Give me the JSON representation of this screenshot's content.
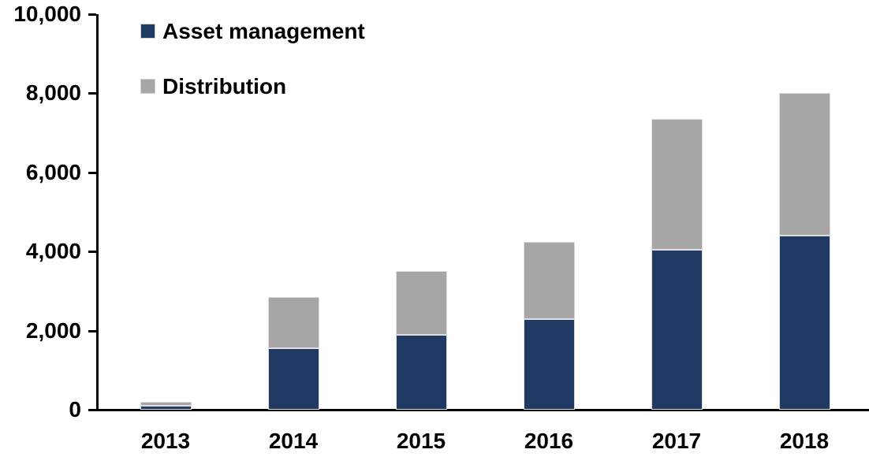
{
  "chart_data": {
    "type": "bar",
    "stacked": true,
    "title": "",
    "xlabel": "",
    "ylabel": "",
    "categories": [
      "2013",
      "2014",
      "2015",
      "2016",
      "2017",
      "2018"
    ],
    "series": [
      {
        "name": "Asset management",
        "color": "#213a64",
        "values": [
          100,
          1550,
          1900,
          2300,
          4050,
          4400
        ]
      },
      {
        "name": "Distribution",
        "color": "#a6a6a6",
        "values": [
          100,
          1300,
          1600,
          1950,
          3300,
          3600
        ]
      }
    ],
    "totals": [
      200,
      2850,
      3500,
      4250,
      7350,
      8000
    ],
    "ylim": [
      0,
      10000
    ],
    "ytick_interval": 2000,
    "ytick_labels": [
      "0",
      "2,000",
      "4,000",
      "6,000",
      "8,000",
      "10,000"
    ],
    "grid": false,
    "legend_position": "top-left"
  },
  "colors": {
    "axis": "#000000",
    "background": "#ffffff",
    "bar_border": "#dedede"
  }
}
